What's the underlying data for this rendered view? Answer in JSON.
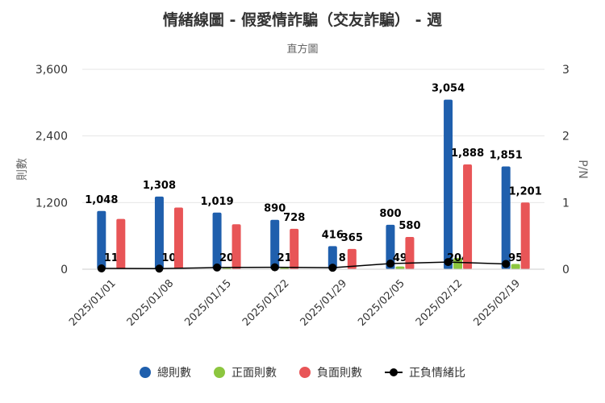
{
  "chart_data": {
    "type": "bar",
    "title": "情緒線圖 - 假愛情詐騙（交友詐騙） - 週",
    "subtitle": "直方圖",
    "ylabel": "則數",
    "y2label": "P/N",
    "ylim": [
      0,
      3600
    ],
    "y2lim": [
      0,
      3
    ],
    "yticks": [
      "0",
      "1,200",
      "2,400",
      "3,600"
    ],
    "y2ticks": [
      "0",
      "1",
      "2",
      "3"
    ],
    "grid": true,
    "legend_position": "bottom",
    "categories": [
      "2025/01/01",
      "2025/01/08",
      "2025/01/15",
      "2025/01/22",
      "2025/01/29",
      "2025/02/05",
      "2025/02/12",
      "2025/02/19"
    ],
    "series": [
      {
        "name": "總則數",
        "type": "bar",
        "color": "#1f5fad",
        "values": [
          1048,
          1308,
          1019,
          890,
          416,
          800,
          3054,
          1851
        ],
        "labels": [
          "1,048",
          "1,308",
          "1,019",
          "890",
          "416",
          "800",
          "3,054",
          "1,851"
        ]
      },
      {
        "name": "正面則數",
        "type": "bar",
        "color": "#8cc63f",
        "values": [
          11,
          10,
          20,
          21,
          8,
          49,
          204,
          95
        ],
        "labels": [
          "11",
          "10",
          "20",
          "21",
          "8",
          "49",
          "204",
          "95"
        ]
      },
      {
        "name": "負面則數",
        "type": "bar",
        "color": "#e85557",
        "values": [
          905,
          1110,
          810,
          728,
          365,
          580,
          1888,
          1201
        ],
        "labels": [
          "",
          "",
          "",
          "728",
          "365",
          "580",
          "1,888",
          "1,201"
        ]
      },
      {
        "name": "正負情緒比",
        "type": "line",
        "axis": "right",
        "color": "#000000",
        "values": [
          0.012,
          0.009,
          0.025,
          0.029,
          0.022,
          0.084,
          0.108,
          0.079
        ]
      }
    ]
  }
}
